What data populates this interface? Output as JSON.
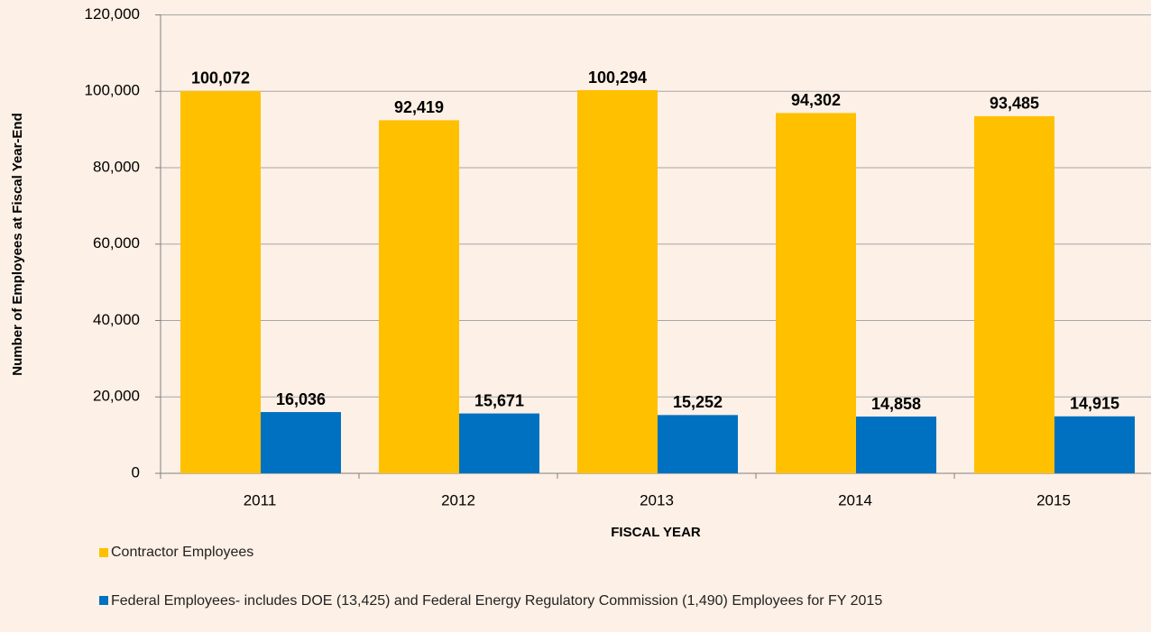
{
  "chart_data": {
    "type": "bar",
    "categories": [
      "2011",
      "2012",
      "2013",
      "2014",
      "2015"
    ],
    "series": [
      {
        "name": "Contractor Employees",
        "color": "#ffc000",
        "values": [
          100072,
          92419,
          100294,
          94302,
          93485
        ],
        "value_labels": [
          "100,072",
          "92,419",
          "100,294",
          "94,302",
          "93,485"
        ]
      },
      {
        "name": "Federal Employees- includes DOE (13,425) and Federal Energy Regulatory Commission (1,490) Employees for FY 2015",
        "color": "#0070c0",
        "values": [
          16036,
          15671,
          15252,
          14858,
          14915
        ],
        "value_labels": [
          "16,036",
          "15,671",
          "15,252",
          "14,858",
          "14,915"
        ]
      }
    ],
    "x_label": "FISCAL YEAR",
    "y_label": "Number of Employees at Fiscal Year-End",
    "ylim": [
      0,
      120000
    ],
    "yticks": [
      0,
      {
        "value": 20000,
        "label": "20,000"
      },
      {
        "value": 40000,
        "label": "40,000"
      },
      {
        "value": 60000,
        "label": "60,000"
      },
      {
        "value": 80000,
        "label": "80,000"
      },
      {
        "value": 100000,
        "label": "100,000"
      },
      {
        "value": 120000,
        "label": "120,000"
      }
    ],
    "grid": true
  }
}
